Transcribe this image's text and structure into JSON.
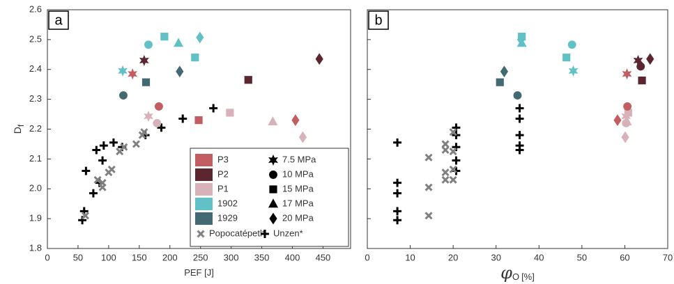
{
  "chart_data": [
    {
      "type": "scatter",
      "panel": "a",
      "xlabel": "PEF [J]",
      "ylabel": "D",
      "ylabel_sub": "f",
      "xlim": [
        0,
        495
      ],
      "ylim": [
        1.8,
        2.6
      ],
      "xticks": [
        0,
        50,
        100,
        150,
        200,
        250,
        300,
        350,
        400,
        450
      ],
      "yticks": [
        1.8,
        1.9,
        {
          "value": 2,
          "label": "2.0"
        },
        2.1,
        2.2,
        2.3,
        2.4,
        2.5,
        2.6
      ],
      "legend": {
        "markers": [
          {
            "label": "7.5 MPa",
            "marker": "star"
          },
          {
            "label": "10 MPa",
            "marker": "circle"
          },
          {
            "label": "15 MPa",
            "marker": "square"
          },
          {
            "label": "17 MPa",
            "marker": "triangle"
          },
          {
            "label": "20 MPa",
            "marker": "diamond"
          }
        ]
      },
      "series": [
        {
          "name": "P3",
          "color": "#c25d61",
          "markers": [
            "star",
            "circle",
            "square",
            "diamond"
          ],
          "x": [
            139,
            182,
            247,
            405
          ],
          "y": [
            2.385,
            2.276,
            2.23,
            2.23
          ]
        },
        {
          "name": "P2",
          "color": "#5b2630",
          "markers": [
            "star",
            "square",
            "diamond"
          ],
          "x": [
            158,
            328,
            444
          ],
          "y": [
            2.43,
            2.365,
            2.435
          ]
        },
        {
          "name": "P1",
          "color": "#d8b2b9",
          "markers": [
            "star",
            "circle",
            "square",
            "triangle",
            "diamond"
          ],
          "x": [
            165,
            179,
            298,
            368,
            417
          ],
          "y": [
            2.243,
            2.22,
            2.255,
            2.225,
            2.173
          ]
        },
        {
          "name": "1902",
          "color": "#62c1c7",
          "markers": [
            "star",
            "circle",
            "square",
            "square",
            "triangle",
            "diamond"
          ],
          "x": [
            123,
            165,
            191,
            241,
            214,
            249
          ],
          "y": [
            2.395,
            2.483,
            2.51,
            2.44,
            2.488,
            2.507
          ]
        },
        {
          "name": "1929",
          "color": "#436a73",
          "markers": [
            "circle",
            "square",
            "diamond"
          ],
          "x": [
            124,
            161,
            216
          ],
          "y": [
            2.313,
            2.357,
            2.393
          ]
        },
        {
          "name": "Popocatépetl*",
          "color": "#808080",
          "marker": "cross",
          "x": [
            62,
            82,
            90,
            90,
            100,
            105,
            118,
            125,
            145,
            155,
            158
          ],
          "y": [
            1.91,
            2.03,
            2.005,
            2.02,
            2.055,
            2.065,
            2.125,
            2.14,
            2.15,
            2.18,
            2.19
          ]
        },
        {
          "name": "Unzen*",
          "color": "#000000",
          "marker": "plus",
          "x": [
            57,
            60,
            63,
            75,
            80,
            85,
            90,
            92,
            108,
            122,
            160,
            186,
            221,
            271
          ],
          "y": [
            1.895,
            1.925,
            2.06,
            1.985,
            2.13,
            2.02,
            2.095,
            2.145,
            2.155,
            2.14,
            2.18,
            2.205,
            2.235,
            2.27
          ]
        }
      ]
    },
    {
      "type": "scatter",
      "panel": "b",
      "xlabel": "φ",
      "xlabel_sub": "O",
      "xlabel_unit": "[%]",
      "xlim": [
        0,
        70
      ],
      "ylim": [
        1.8,
        2.6
      ],
      "xticks": [
        0,
        10,
        20,
        30,
        40,
        50,
        60,
        70
      ],
      "yticks": [
        1.8,
        1.9,
        2,
        2.1,
        2.2,
        2.3,
        2.4,
        2.5,
        2.6
      ],
      "series": [
        {
          "color": "#c25d61",
          "markers": [
            "star",
            "circle",
            "diamond"
          ],
          "x": [
            60.5,
            60.6,
            58.3
          ],
          "y": [
            2.385,
            2.276,
            2.23
          ]
        },
        {
          "color": "#5b2630",
          "markers": [
            "star",
            "circle",
            "square",
            "diamond"
          ],
          "x": [
            63.1,
            63.7,
            64.0,
            65.9
          ],
          "y": [
            2.43,
            2.41,
            2.363,
            2.435
          ]
        },
        {
          "color": "#d8b2b9",
          "markers": [
            "star",
            "circle",
            "square",
            "triangle",
            "diamond"
          ],
          "x": [
            60.3,
            60.3,
            60.8,
            60.5,
            60.1
          ],
          "y": [
            2.243,
            2.22,
            2.255,
            2.225,
            2.173
          ]
        },
        {
          "color": "#62c1c7",
          "markers": [
            "star",
            "circle",
            "square",
            "square",
            "triangle",
            "diamond"
          ],
          "x": [
            48.0,
            47.7,
            46.4,
            36.0,
            36.0,
            35.8
          ],
          "y": [
            2.395,
            2.483,
            2.44,
            2.51,
            2.488,
            2.5
          ]
        },
        {
          "color": "#436a73",
          "markers": [
            "circle",
            "square",
            "diamond"
          ],
          "x": [
            35.0,
            30.9,
            31.9
          ],
          "y": [
            2.313,
            2.357,
            2.393
          ]
        },
        {
          "color": "#808080",
          "marker": "cross",
          "x": [
            14.3,
            14.3,
            14.3,
            18.2,
            18.2,
            18.2,
            18.2,
            20,
            20,
            20,
            20
          ],
          "y": [
            1.91,
            2.005,
            2.105,
            2.03,
            2.055,
            2.13,
            2.15,
            2.03,
            2.065,
            2.125,
            2.19
          ]
        },
        {
          "color": "#000000",
          "marker": "plus",
          "x": [
            7,
            7,
            7,
            7,
            7,
            20.7,
            20.7,
            20.7,
            20.7,
            20.7,
            35.5,
            35.5,
            35.5,
            35.5,
            35.5
          ],
          "y": [
            1.895,
            1.925,
            1.985,
            2.02,
            2.155,
            2.06,
            2.095,
            2.14,
            2.18,
            2.205,
            2.13,
            2.145,
            2.18,
            2.235,
            2.27
          ]
        }
      ]
    }
  ]
}
